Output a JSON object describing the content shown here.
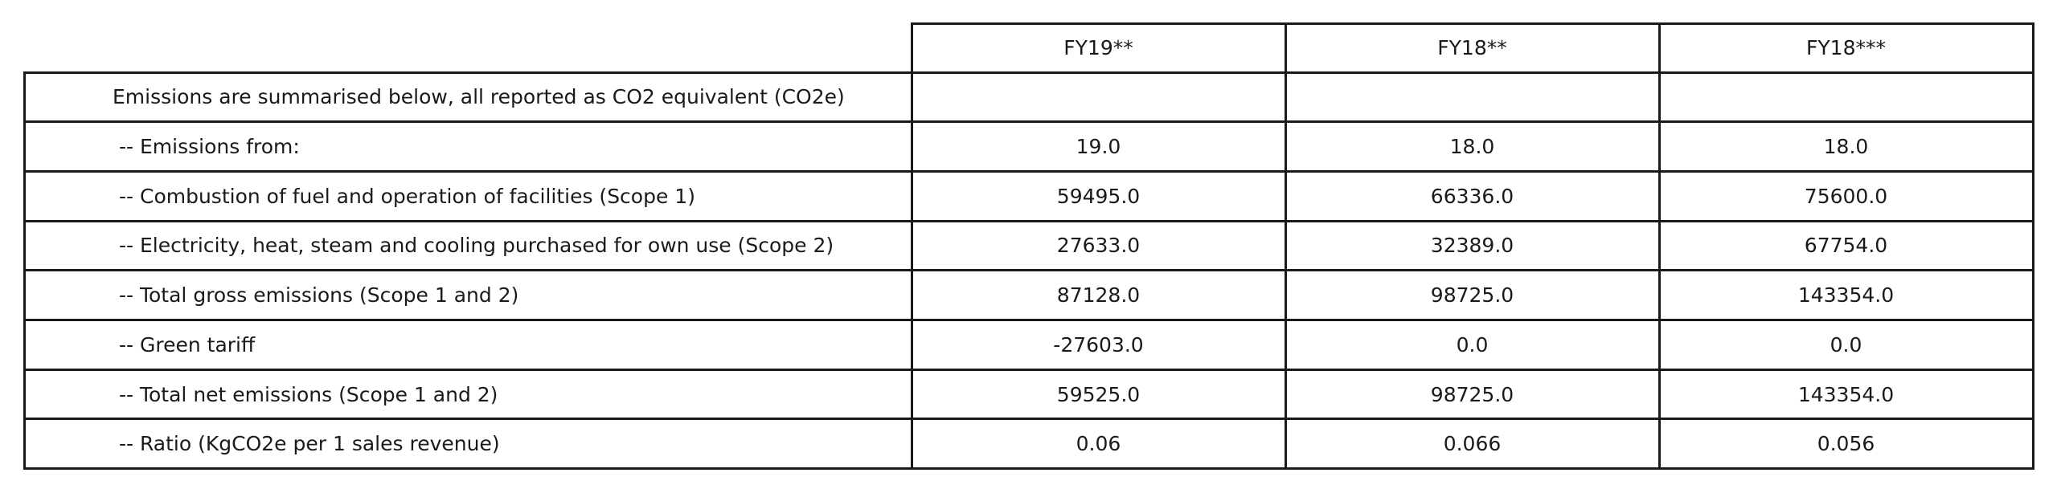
{
  "chart_data": {
    "type": "table",
    "columns": [
      "",
      "FY19**",
      "FY18**",
      "FY18***"
    ],
    "rows": [
      {
        "label": "Emissions are summarised below, all reported as CO2 equivalent (CO2e)",
        "values": [
          "",
          "",
          ""
        ]
      },
      {
        "label": "--  Emissions from:",
        "values": [
          "19.0",
          "18.0",
          "18.0"
        ]
      },
      {
        "label": "--  Combustion of fuel and operation of facilities (Scope 1)",
        "values": [
          "59495.0",
          "66336.0",
          "75600.0"
        ]
      },
      {
        "label": "--  Electricity, heat, steam and cooling purchased for own use (Scope 2)",
        "values": [
          "27633.0",
          "32389.0",
          "67754.0"
        ]
      },
      {
        "label": "--  Total gross emissions (Scope 1 and 2)",
        "values": [
          "87128.0",
          "98725.0",
          "143354.0"
        ]
      },
      {
        "label": "--  Green tariff",
        "values": [
          "-27603.0",
          "0.0",
          "0.0"
        ]
      },
      {
        "label": "--  Total net emissions (Scope 1 and 2)",
        "values": [
          "59525.0",
          "98725.0",
          "143354.0"
        ]
      },
      {
        "label": "--  Ratio (KgCO2e per 1 sales revenue)",
        "values": [
          "0.06",
          "0.066",
          "0.056"
        ]
      }
    ]
  }
}
